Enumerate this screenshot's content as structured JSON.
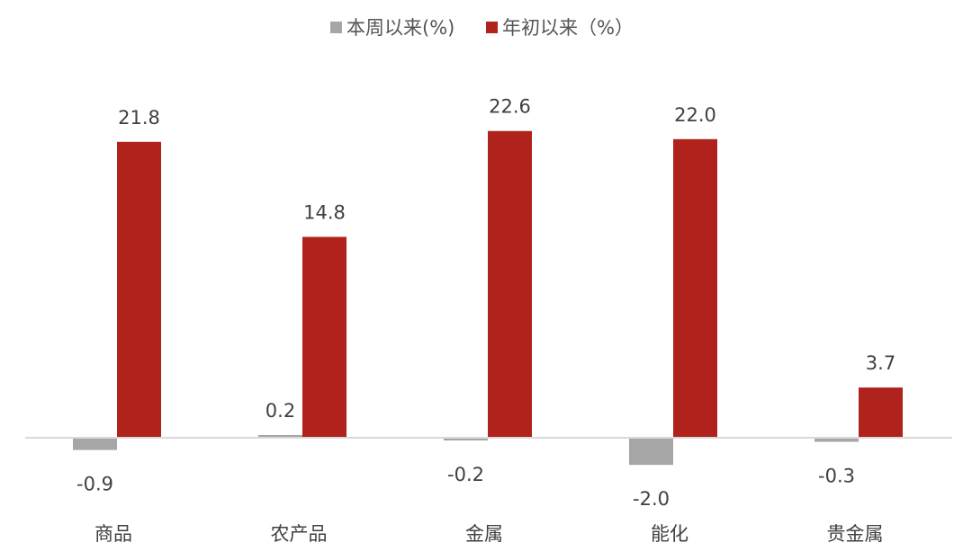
{
  "chart_data": {
    "type": "bar",
    "categories": [
      "商品",
      "农产品",
      "金属",
      "能化",
      "贵金属"
    ],
    "series": [
      {
        "name": "本周以来(%)",
        "color": "#a6a6a6",
        "values": [
          -0.9,
          0.2,
          -0.2,
          -2.0,
          -0.3
        ]
      },
      {
        "name": "年初以来（%）",
        "color": "#b0221c",
        "values": [
          21.8,
          14.8,
          22.6,
          22.0,
          3.7
        ]
      }
    ],
    "title": "",
    "xlabel": "",
    "ylabel": "",
    "ylim": [
      -3,
      25
    ],
    "grid": false,
    "legend_position": "top-center",
    "axis_color": "#d9d9d9"
  }
}
